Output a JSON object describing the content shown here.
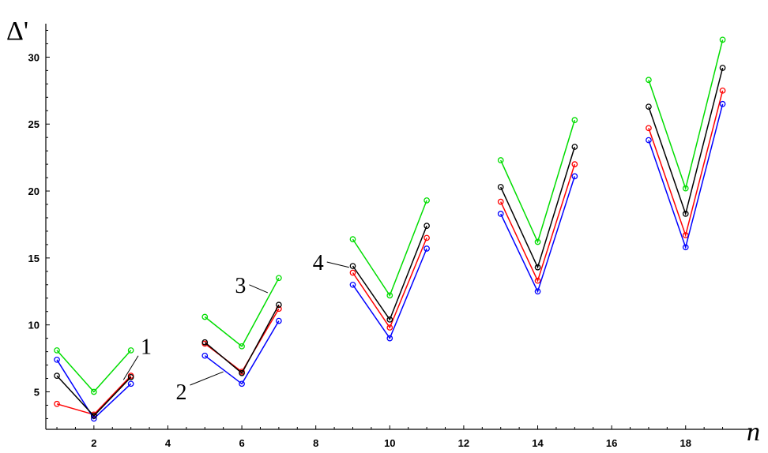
{
  "chart_data": {
    "type": "line",
    "title": "",
    "xlabel": "n",
    "ylabel": "Δ'",
    "xlim": [
      0.7,
      19.8
    ],
    "ylim": [
      2.2,
      32.5
    ],
    "x_ticks": [
      2,
      4,
      6,
      8,
      10,
      12,
      14,
      16,
      18
    ],
    "y_ticks": [
      5,
      10,
      15,
      20,
      25,
      30
    ],
    "grid": false,
    "legend": "none",
    "groups": [
      [
        1,
        2,
        3
      ],
      [
        5,
        6,
        7
      ],
      [
        9,
        10,
        11
      ],
      [
        13,
        14,
        15
      ],
      [
        17,
        18,
        19
      ]
    ],
    "series": [
      {
        "color": "#ff0000",
        "x": [
          1,
          2,
          3,
          5,
          6,
          7,
          9,
          10,
          11,
          13,
          14,
          15,
          17,
          18,
          19
        ],
        "y": [
          4.1,
          3.3,
          6.2,
          8.6,
          6.5,
          11.2,
          13.9,
          9.8,
          16.5,
          19.2,
          13.3,
          22.0,
          24.7,
          16.7,
          27.5
        ]
      },
      {
        "color": "#0000ff",
        "x": [
          1,
          2,
          3,
          5,
          6,
          7,
          9,
          10,
          11,
          13,
          14,
          15,
          17,
          18,
          19
        ],
        "y": [
          7.4,
          3.0,
          5.6,
          7.7,
          5.6,
          10.3,
          13.0,
          9.0,
          15.7,
          18.3,
          12.5,
          21.1,
          23.8,
          15.8,
          26.5
        ]
      },
      {
        "color": "#00dd00",
        "x": [
          1,
          2,
          3,
          5,
          6,
          7,
          9,
          10,
          11,
          13,
          14,
          15,
          17,
          18,
          19
        ],
        "y": [
          8.1,
          5.0,
          8.1,
          10.6,
          8.4,
          13.5,
          16.4,
          12.2,
          19.3,
          22.3,
          16.2,
          25.3,
          28.3,
          20.2,
          31.3
        ]
      },
      {
        "color": "#000000",
        "x": [
          1,
          2,
          3,
          5,
          6,
          7,
          9,
          10,
          11,
          13,
          14,
          15,
          17,
          18,
          19
        ],
        "y": [
          6.2,
          3.2,
          6.1,
          8.7,
          6.4,
          11.5,
          14.4,
          10.4,
          17.4,
          20.3,
          14.3,
          23.3,
          26.3,
          18.3,
          29.2
        ]
      }
    ],
    "annotations": [
      {
        "text": "1",
        "x": 2.8,
        "y": 5.9,
        "label_x": 3.2,
        "label_y": 7.7
      },
      {
        "text": "2",
        "x": 5.5,
        "y": 6.5,
        "label_x": 4.6,
        "label_y": 5.5
      },
      {
        "text": "3",
        "x": 6.7,
        "y": 12.4,
        "label_x": 6.2,
        "label_y": 13.0
      },
      {
        "text": "4",
        "x": 8.9,
        "y": 14.3,
        "label_x": 8.3,
        "label_y": 14.7
      }
    ]
  }
}
